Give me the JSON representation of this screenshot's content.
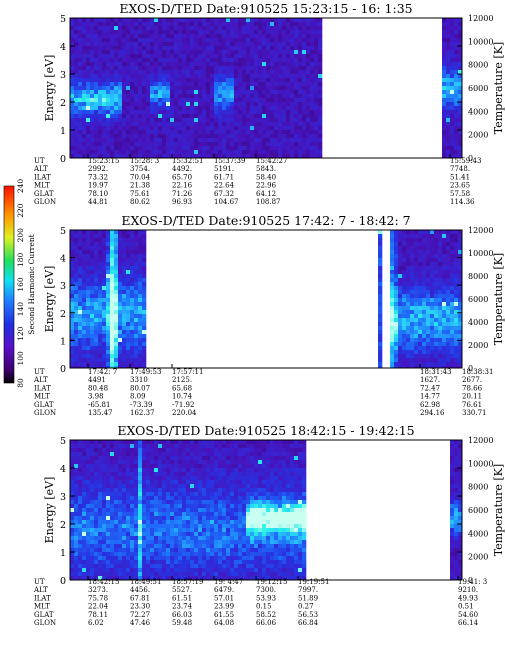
{
  "chart_data": [
    {
      "type": "heatmap",
      "title": "EXOS-D/TED   Date:910525   15:23:15 -  16: 1:35",
      "ylabel": "Energy [eV]",
      "y2label": "Temperature [K]",
      "ylim": [
        0,
        5
      ],
      "y_ticks": [
        "0",
        "1",
        "2",
        "3",
        "4",
        "5"
      ],
      "y2lim": [
        0,
        12000
      ],
      "y2_ticks": [
        "0",
        "2000",
        "4000",
        "6000",
        "8000",
        "10000",
        "12000"
      ],
      "data_segments": [
        [
          0.0,
          0.64
        ],
        [
          0.95,
          1.0
        ]
      ],
      "warm_bands": [
        {
          "from": 0.0,
          "to": 0.13,
          "e_center": 2.1,
          "e_width": 0.6,
          "level": 0.55
        },
        {
          "from": 0.2,
          "to": 0.26,
          "e_center": 2.3,
          "e_width": 0.5,
          "level": 0.45
        },
        {
          "from": 0.37,
          "to": 0.42,
          "e_center": 2.3,
          "e_width": 0.6,
          "level": 0.45
        },
        {
          "from": 0.95,
          "to": 1.0,
          "e_center": 2.5,
          "e_width": 0.7,
          "level": 0.5
        }
      ],
      "spikes": [],
      "table": {
        "labels": [
          "UT",
          "ALT",
          "ILAT",
          "MLT",
          "GLAT",
          "GLON"
        ],
        "columns": [
          {
            "values": [
              "15:23:15",
              "2992.",
              "73.32",
              "19.97",
              "78.10",
              "44.81"
            ]
          },
          {
            "values": [
              "15:28: 3",
              "3754.",
              "70.04",
              "21.38",
              "75.61",
              "80.62"
            ]
          },
          {
            "values": [
              "15:32:51",
              "4492.",
              "65.70",
              "22.16",
              "71.26",
              "96.93"
            ]
          },
          {
            "values": [
              "15:37:39",
              "5191.",
              "61.71",
              "22.64",
              "67.32",
              "104.67"
            ]
          },
          {
            "values": [
              "15:42:27",
              "5843.",
              "58.40",
              "22.96",
              "64.12",
              "108.87"
            ]
          },
          {
            "values": [
              "15:59:43",
              "7748.",
              "51.41",
              "23.65",
              "57.58",
              "114.36"
            ]
          }
        ]
      }
    },
    {
      "type": "heatmap",
      "title": "EXOS-D/TED   Date:910525   17:42: 7 -  18:42: 7",
      "ylabel": "Energy [eV]",
      "y2label": "Temperature [K]",
      "ylim": [
        0,
        5
      ],
      "y_ticks": [
        "0",
        "1",
        "2",
        "3",
        "4",
        "5"
      ],
      "y2lim": [
        0,
        12000
      ],
      "y2_ticks": [
        "0",
        "2000",
        "4000",
        "6000",
        "8000",
        "10000",
        "12000"
      ],
      "data_segments": [
        [
          0.0,
          0.19
        ],
        [
          0.782,
          0.792
        ],
        [
          0.818,
          1.0
        ]
      ],
      "warm_bands": [
        {
          "from": 0.0,
          "to": 0.19,
          "e_center": 2.0,
          "e_width": 1.3,
          "level": 0.45
        },
        {
          "from": 0.818,
          "to": 1.0,
          "e_center": 1.8,
          "e_width": 1.1,
          "level": 0.5
        }
      ],
      "spikes": [
        {
          "at": 0.11,
          "width": 0.018,
          "level": 0.75
        },
        {
          "at": 0.787,
          "width": 0.006,
          "level": 0.65
        },
        {
          "at": 0.825,
          "width": 0.01,
          "level": 0.55
        }
      ],
      "table": {
        "labels": [
          "UT",
          "ALT",
          "ILAT",
          "MLT",
          "GLAT",
          "GLON"
        ],
        "columns": [
          {
            "values": [
              "17:42: 7",
              "4491",
              "80.48",
              "3.98",
              "-65.81",
              "135.47"
            ]
          },
          {
            "values": [
              "17:49:53",
              "3310",
              "80.07",
              "8.09",
              "-73.39",
              "162.37"
            ]
          },
          {
            "values": [
              "17:57:11",
              "2125.",
              "65.68",
              "10.74",
              "-71.92",
              "220.04"
            ]
          },
          {
            "values": [
              "18:31:43",
              "1627.",
              "72.47",
              "14.77",
              "62.98",
              "294.16"
            ]
          },
          {
            "values": [
              "18:38:31",
              "2677.",
              "78.66",
              "20.11",
              "76.61",
              "330.71"
            ]
          }
        ]
      },
      "colorbar": {
        "label": "Second Harmonic Current",
        "ticks": [
          "80",
          "100",
          "120",
          "140",
          "160",
          "180",
          "200",
          "220",
          "240"
        ]
      }
    },
    {
      "type": "heatmap",
      "title": "EXOS-D/TED   Date:910525   18:42:15 -  19:42:15",
      "ylabel": "Energy [eV]",
      "y2label": "Temperature [K]",
      "ylim": [
        0,
        5
      ],
      "y_ticks": [
        "0",
        "1",
        "2",
        "3",
        "4",
        "5"
      ],
      "y2lim": [
        0,
        12000
      ],
      "y2_ticks": [
        "0",
        "2000",
        "4000",
        "6000",
        "8000",
        "10000",
        "12000"
      ],
      "data_segments": [
        [
          0.0,
          0.6
        ],
        [
          0.965,
          1.0
        ]
      ],
      "warm_bands": [
        {
          "from": 0.0,
          "to": 0.6,
          "e_center": 1.8,
          "e_width": 1.6,
          "level": 0.35
        },
        {
          "from": 0.45,
          "to": 0.6,
          "e_center": 2.2,
          "e_width": 0.5,
          "level": 0.7
        },
        {
          "from": 0.965,
          "to": 1.0,
          "e_center": 2.2,
          "e_width": 0.6,
          "level": 0.5
        }
      ],
      "spikes": [
        {
          "at": 0.18,
          "width": 0.006,
          "level": 0.45
        }
      ],
      "table": {
        "labels": [
          "UT",
          "ALT",
          "ILAT",
          "MLT",
          "GLAT",
          "GLON"
        ],
        "columns": [
          {
            "values": [
              "18:42:15",
              "3273.",
              "75.78",
              "22.04",
              "78.11",
              "6.02"
            ]
          },
          {
            "values": [
              "18:49:51",
              "4456.",
              "67.81",
              "23.30",
              "72.27",
              "47.46"
            ]
          },
          {
            "values": [
              "18:57:19",
              "5527.",
              "61.51",
              "23.74",
              "66.03",
              "59.48"
            ]
          },
          {
            "values": [
              "19: 4:47",
              "6479.",
              "57.01",
              "23.99",
              "61.55",
              "64.08"
            ]
          },
          {
            "values": [
              "19:12:15",
              "7300.",
              "53.93",
              "0.15",
              "58.52",
              "66.06"
            ]
          },
          {
            "values": [
              "19:19:51",
              "7997.",
              "51.89",
              "0.27",
              "56.53",
              "66.84"
            ]
          },
          {
            "values": [
              "19:41: 3",
              "9210.",
              "49.93",
              "0.51",
              "54.60",
              "66.14"
            ]
          }
        ]
      }
    }
  ]
}
